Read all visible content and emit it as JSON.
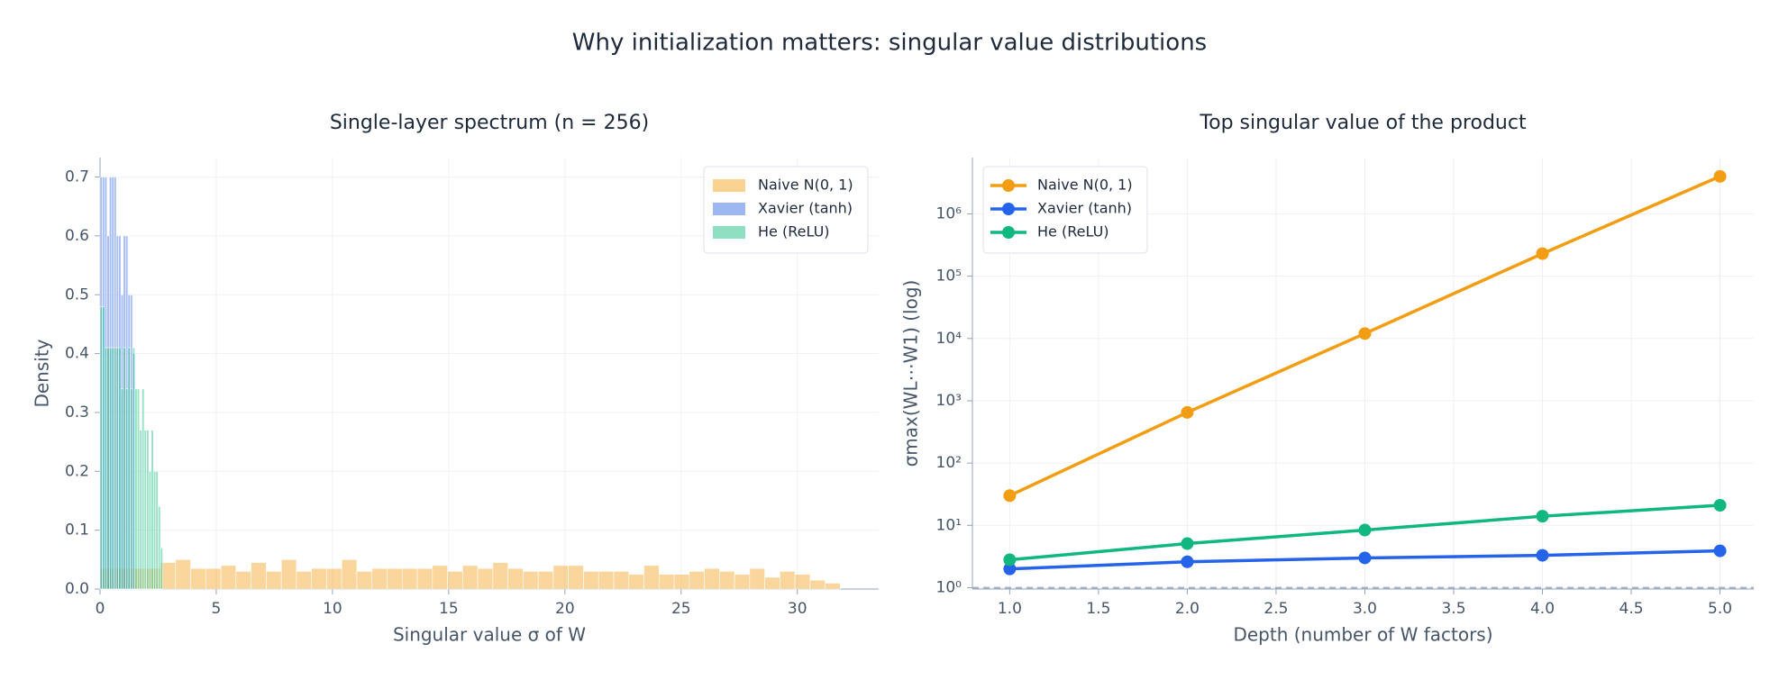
{
  "title": "Why initialization matters: singular value distributions",
  "chart_data": [
    {
      "type": "histogram",
      "title": "Single-layer spectrum (n = 256)",
      "xlabel": "Singular value σ of W",
      "ylabel": "Density",
      "xlim": [
        0,
        33.5
      ],
      "ylim": [
        0,
        0.733
      ],
      "xticks": [
        0,
        5,
        10,
        15,
        20,
        25,
        30
      ],
      "yticks": [
        {
          "value": 0,
          "label": "0.0"
        },
        0.1,
        0.2,
        0.3,
        0.4,
        0.5,
        0.6,
        0.7
      ],
      "grid": true,
      "legend_loc": "upper right",
      "series": [
        {
          "name": "Naive N(0, 1)",
          "color": "#f5a524",
          "bins": [
            0,
            0.65,
            1.3,
            1.95,
            2.6,
            3.25,
            3.9,
            4.55,
            5.2,
            5.85,
            6.5,
            7.15,
            7.8,
            8.45,
            9.1,
            9.75,
            10.4,
            11.05,
            11.7,
            12.35,
            13,
            13.65,
            14.3,
            14.95,
            15.6,
            16.25,
            16.9,
            17.55,
            18.2,
            18.85,
            19.5,
            20.15,
            20.8,
            21.45,
            22.1,
            22.75,
            23.4,
            24.05,
            24.7,
            25.35,
            26,
            26.65,
            27.3,
            27.95,
            28.6,
            29.25,
            29.9,
            30.55,
            31.2,
            31.85
          ],
          "values": [
            0.035,
            0.035,
            0.035,
            0.035,
            0.045,
            0.05,
            0.035,
            0.035,
            0.04,
            0.03,
            0.045,
            0.03,
            0.05,
            0.03,
            0.035,
            0.035,
            0.05,
            0.03,
            0.035,
            0.035,
            0.035,
            0.035,
            0.04,
            0.03,
            0.04,
            0.035,
            0.045,
            0.035,
            0.03,
            0.03,
            0.04,
            0.04,
            0.03,
            0.03,
            0.03,
            0.025,
            0.04,
            0.025,
            0.025,
            0.03,
            0.035,
            0.03,
            0.025,
            0.035,
            0.02,
            0.03,
            0.025,
            0.015,
            0.01
          ]
        },
        {
          "name": "Xavier (tanh)",
          "color": "#3b6fe6",
          "bins": [
            0,
            0.1,
            0.2,
            0.3,
            0.4,
            0.5,
            0.6,
            0.7,
            0.8,
            0.9,
            1.0,
            1.1,
            1.2,
            1.3,
            1.4,
            1.5
          ],
          "values": [
            0.7,
            0.7,
            0.7,
            0.6,
            0.7,
            0.7,
            0.7,
            0.6,
            0.6,
            0.5,
            0.6,
            0.6,
            0.5,
            0.5,
            0.4
          ]
        },
        {
          "name": "He (ReLU)",
          "color": "#1fbf86",
          "bins": [
            0,
            0.1,
            0.2,
            0.3,
            0.4,
            0.5,
            0.6,
            0.7,
            0.8,
            0.9,
            1.0,
            1.1,
            1.2,
            1.3,
            1.4,
            1.5,
            1.6,
            1.7,
            1.8,
            1.9,
            2.0,
            2.1,
            2.2,
            2.3,
            2.4,
            2.5,
            2.6,
            2.7
          ],
          "values": [
            0.48,
            0.48,
            0.41,
            0.41,
            0.41,
            0.41,
            0.41,
            0.41,
            0.41,
            0.34,
            0.41,
            0.34,
            0.41,
            0.34,
            0.41,
            0.34,
            0.34,
            0.27,
            0.34,
            0.27,
            0.27,
            0.2,
            0.27,
            0.2,
            0.2,
            0.14,
            0.07
          ]
        }
      ]
    },
    {
      "type": "line",
      "title": "Top singular value of the product",
      "xlabel": "Depth (number of W factors)",
      "ylabel": "σmax(WL⋯W1)  (log)",
      "yscale": "log",
      "xlim": [
        0.79,
        5.19
      ],
      "ylim": [
        0.95,
        8000000
      ],
      "xticks": [
        {
          "value": 1,
          "label": "1.0"
        },
        1.5,
        {
          "value": 2,
          "label": "2.0"
        },
        2.5,
        {
          "value": 3,
          "label": "3.0"
        },
        3.5,
        {
          "value": 4,
          "label": "4.0"
        },
        4.5,
        {
          "value": 5,
          "label": "5.0"
        }
      ],
      "yticks": [
        {
          "value": 1,
          "label": "10⁰"
        },
        {
          "value": 10,
          "label": "10¹"
        },
        {
          "value": 100,
          "label": "10²"
        },
        {
          "value": 1000,
          "label": "10³"
        },
        {
          "value": 10000,
          "label": "10⁴"
        },
        {
          "value": 100000,
          "label": "10⁵"
        },
        {
          "value": 1000000,
          "label": "10⁶"
        }
      ],
      "grid": true,
      "legend_loc": "upper left",
      "reference_line": 1,
      "x": [
        1,
        2,
        3,
        4,
        5
      ],
      "series": [
        {
          "name": "Naive N(0, 1)",
          "color": "#f29d12",
          "values": [
            30,
            650,
            12000,
            230000,
            4000000
          ]
        },
        {
          "name": "Xavier (tanh)",
          "color": "#2563eb",
          "values": [
            2.0,
            2.6,
            3.0,
            3.3,
            3.9
          ]
        },
        {
          "name": "He (ReLU)",
          "color": "#10b77f",
          "values": [
            2.8,
            5.1,
            8.4,
            14,
            21
          ]
        }
      ]
    }
  ]
}
